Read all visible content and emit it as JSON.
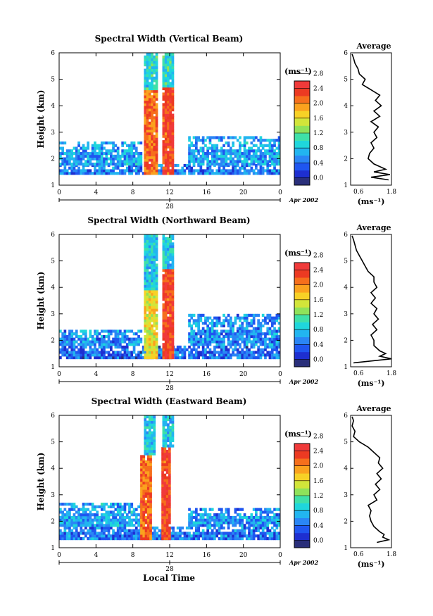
{
  "colors": {
    "palette": [
      "#2a2f7a",
      "#1e2fd0",
      "#1f56f0",
      "#2a86f5",
      "#22b5f0",
      "#1fd6dc",
      "#3fe0a8",
      "#8fe25a",
      "#d2e53a",
      "#f7d126",
      "#fba21e",
      "#f66f1c",
      "#ec3a22",
      "#f03a3a"
    ],
    "line": "#000000",
    "background": "#ffffff"
  },
  "footer": {
    "xlabel": "Local Time"
  },
  "colorbar": {
    "unit": "(ms⁻¹)",
    "ticks": [
      "0.0",
      "0.4",
      "0.8",
      "1.2",
      "1.6",
      "2.0",
      "2.4",
      "2.8"
    ]
  },
  "chart_data": [
    {
      "type": "heatmap",
      "title": "Spectral Width (Vertical Beam)",
      "ylabel": "Height (km)",
      "xlim": [
        0,
        24
      ],
      "x_ticks": [
        "0",
        "4",
        "8",
        "12",
        "16",
        "20",
        "0"
      ],
      "ylim": [
        1,
        6
      ],
      "y_ticks": [
        "1",
        "2",
        "3",
        "4",
        "5",
        "6"
      ],
      "date_label": "28",
      "date_suffix": "Apr 2002",
      "value_range": [
        0.0,
        3.0
      ],
      "regions": [
        {
          "t": [
            0,
            24
          ],
          "h": [
            1.4,
            1.75
          ],
          "value": 0.7
        },
        {
          "t": [
            0,
            8.8
          ],
          "h": [
            1.75,
            2.6
          ],
          "value": 0.9
        },
        {
          "t": [
            14,
            24
          ],
          "h": [
            1.75,
            2.8
          ],
          "value": 0.9
        },
        {
          "t": [
            9.2,
            10.6
          ],
          "h": [
            1.4,
            4.6
          ],
          "value": 2.5
        },
        {
          "t": [
            11.2,
            12.3
          ],
          "h": [
            1.4,
            4.7
          ],
          "value": 2.7
        },
        {
          "t": [
            9.2,
            10.6
          ],
          "h": [
            4.6,
            6.0
          ],
          "value": 1.2
        },
        {
          "t": [
            11.2,
            12.3
          ],
          "h": [
            4.7,
            6.0
          ],
          "value": 1.2
        }
      ],
      "profile": {
        "title": "Average",
        "xlabel": "(ms⁻¹)",
        "xlim": [
          0.4,
          1.8
        ],
        "x_ticks": [
          "0.6",
          "1.8"
        ],
        "y_ticks": [
          "1",
          "2",
          "3",
          "4",
          "5",
          "6"
        ],
        "heights": [
          1.2,
          1.3,
          1.4,
          1.5,
          1.6,
          1.8,
          2.0,
          2.2,
          2.4,
          2.6,
          2.8,
          3.0,
          3.2,
          3.4,
          3.6,
          3.8,
          4.0,
          4.2,
          4.4,
          4.6,
          4.8,
          5.0,
          5.2,
          5.4,
          5.6,
          5.8,
          5.95
        ],
        "values": [
          1.7,
          1.1,
          1.75,
          1.2,
          1.6,
          1.2,
          1.0,
          1.05,
          1.2,
          1.1,
          1.3,
          1.2,
          1.35,
          1.1,
          1.4,
          1.2,
          1.45,
          1.25,
          1.4,
          1.1,
          0.8,
          0.9,
          0.7,
          0.65,
          0.55,
          0.5,
          0.45
        ]
      }
    },
    {
      "type": "heatmap",
      "title": "Spectral Width (Northward Beam)",
      "ylabel": "Height (km)",
      "xlim": [
        0,
        24
      ],
      "x_ticks": [
        "0",
        "4",
        "8",
        "12",
        "16",
        "20",
        "0"
      ],
      "ylim": [
        1,
        6
      ],
      "y_ticks": [
        "1",
        "2",
        "3",
        "4",
        "5",
        "6"
      ],
      "date_label": "28",
      "date_suffix": "Apr 2002",
      "value_range": [
        0.0,
        3.0
      ],
      "regions": [
        {
          "t": [
            0,
            24
          ],
          "h": [
            1.3,
            1.8
          ],
          "value": 0.6
        },
        {
          "t": [
            0,
            8.8
          ],
          "h": [
            1.8,
            2.4
          ],
          "value": 0.8
        },
        {
          "t": [
            14,
            24
          ],
          "h": [
            1.8,
            3.0
          ],
          "value": 0.8
        },
        {
          "t": [
            9.2,
            10.7
          ],
          "h": [
            1.3,
            3.9
          ],
          "value": 1.9
        },
        {
          "t": [
            11.2,
            12.3
          ],
          "h": [
            1.3,
            4.7
          ],
          "value": 2.7
        },
        {
          "t": [
            9.2,
            10.7
          ],
          "h": [
            3.9,
            6.0
          ],
          "value": 1.1
        },
        {
          "t": [
            11.2,
            12.3
          ],
          "h": [
            4.7,
            6.0
          ],
          "value": 1.1
        }
      ],
      "profile": {
        "title": "Average",
        "xlabel": "(ms⁻¹)",
        "xlim": [
          0.4,
          1.8
        ],
        "x_ticks": [
          "0.6",
          "1.8"
        ],
        "y_ticks": [
          "1",
          "2",
          "3",
          "4",
          "5",
          "6"
        ],
        "heights": [
          1.15,
          1.3,
          1.4,
          1.5,
          1.6,
          1.8,
          2.0,
          2.2,
          2.4,
          2.6,
          2.8,
          3.0,
          3.2,
          3.4,
          3.6,
          3.8,
          4.0,
          4.2,
          4.4,
          4.6,
          4.8,
          5.0,
          5.2,
          5.4,
          5.6,
          5.8,
          5.95
        ],
        "values": [
          0.5,
          1.8,
          1.4,
          1.6,
          1.4,
          1.2,
          1.2,
          1.1,
          1.3,
          1.15,
          1.35,
          1.2,
          1.3,
          1.1,
          1.25,
          1.1,
          1.3,
          1.2,
          1.2,
          1.0,
          0.9,
          0.8,
          0.7,
          0.6,
          0.55,
          0.5,
          0.45
        ]
      }
    },
    {
      "type": "heatmap",
      "title": "Spectral Width (Eastward Beam)",
      "ylabel": "Height (km)",
      "xlim": [
        0,
        24
      ],
      "x_ticks": [
        "0",
        "4",
        "8",
        "12",
        "16",
        "20",
        "0"
      ],
      "ylim": [
        1,
        6
      ],
      "y_ticks": [
        "1",
        "2",
        "3",
        "4",
        "5",
        "6"
      ],
      "date_label": "28",
      "date_suffix": "Apr 2002",
      "value_range": [
        0.0,
        3.0
      ],
      "regions": [
        {
          "t": [
            0,
            24
          ],
          "h": [
            1.3,
            1.8
          ],
          "value": 0.7
        },
        {
          "t": [
            0,
            8.8
          ],
          "h": [
            1.8,
            2.7
          ],
          "value": 0.9
        },
        {
          "t": [
            14,
            24
          ],
          "h": [
            1.8,
            2.5
          ],
          "value": 0.8
        },
        {
          "t": [
            8.8,
            10.0
          ],
          "h": [
            1.3,
            4.5
          ],
          "value": 2.5
        },
        {
          "t": [
            11.1,
            12.1
          ],
          "h": [
            1.3,
            4.8
          ],
          "value": 2.7
        },
        {
          "t": [
            9.2,
            10.4
          ],
          "h": [
            4.5,
            6.0
          ],
          "value": 1.1
        },
        {
          "t": [
            11.2,
            12.3
          ],
          "h": [
            4.8,
            6.0
          ],
          "value": 1.1
        }
      ],
      "profile": {
        "title": "Average",
        "xlabel": "(ms⁻¹)",
        "xlim": [
          0.4,
          1.8
        ],
        "x_ticks": [
          "0.6",
          "1.8"
        ],
        "y_ticks": [
          "1",
          "2",
          "3",
          "4",
          "5",
          "6"
        ],
        "heights": [
          1.2,
          1.3,
          1.4,
          1.5,
          1.6,
          1.8,
          2.0,
          2.2,
          2.4,
          2.6,
          2.8,
          3.0,
          3.2,
          3.4,
          3.6,
          3.8,
          4.0,
          4.2,
          4.4,
          4.6,
          4.8,
          5.0,
          5.2,
          5.4,
          5.6,
          5.8,
          5.95
        ],
        "values": [
          1.3,
          1.7,
          1.5,
          1.55,
          1.4,
          1.2,
          1.1,
          1.05,
          1.1,
          1.0,
          1.3,
          1.2,
          1.4,
          1.25,
          1.45,
          1.3,
          1.5,
          1.35,
          1.4,
          1.2,
          1.0,
          0.7,
          0.5,
          0.55,
          0.45,
          0.5,
          0.45
        ]
      }
    }
  ]
}
